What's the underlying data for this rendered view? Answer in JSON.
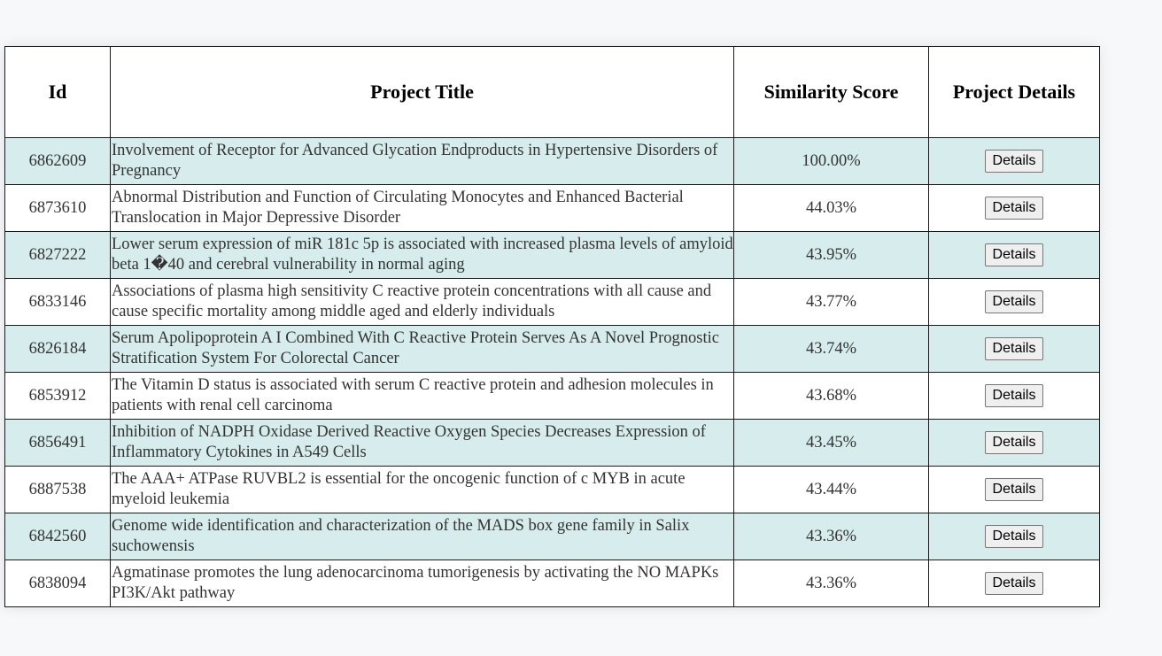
{
  "table": {
    "headers": {
      "id": "Id",
      "title": "Project Title",
      "score": "Similarity Score",
      "details": "Project Details"
    },
    "details_label": "Details",
    "rows": [
      {
        "id": "6862609",
        "title": "Involvement of Receptor for Advanced Glycation Endproducts in Hypertensive Disorders of Pregnancy",
        "score": "100.00%"
      },
      {
        "id": "6873610",
        "title": "Abnormal Distribution and Function of Circulating Monocytes and Enhanced Bacterial Translocation in Major Depressive Disorder",
        "score": "44.03%"
      },
      {
        "id": "6827222",
        "title": "Lower serum expression of miR 181c 5p is associated with increased plasma levels of amyloid beta 1�40 and cerebral vulnerability in normal aging",
        "score": "43.95%"
      },
      {
        "id": "6833146",
        "title": "Associations of plasma high sensitivity C reactive protein concentrations with all cause and cause specific mortality among middle aged and elderly individuals",
        "score": "43.77%"
      },
      {
        "id": "6826184",
        "title": "Serum Apolipoprotein A I Combined With C Reactive Protein Serves As A Novel Prognostic Stratification System For Colorectal Cancer",
        "score": "43.74%"
      },
      {
        "id": "6853912",
        "title": "The Vitamin D status is associated with serum C reactive protein and adhesion molecules in patients with renal cell carcinoma",
        "score": "43.68%"
      },
      {
        "id": "6856491",
        "title": "Inhibition of NADPH Oxidase Derived Reactive Oxygen Species Decreases Expression of Inflammatory Cytokines in A549 Cells",
        "score": "43.45%"
      },
      {
        "id": "6887538",
        "title": "The AAA+ ATPase RUVBL2 is essential for the oncogenic function of c MYB in acute myeloid leukemia",
        "score": "43.44%"
      },
      {
        "id": "6842560",
        "title": "Genome wide identification and characterization of the MADS box gene family in Salix suchowensis",
        "score": "43.36%"
      },
      {
        "id": "6838094",
        "title": "Agmatinase promotes the lung adenocarcinoma tumorigenesis by activating the NO MAPKs PI3K/Akt pathway",
        "score": "43.36%"
      }
    ]
  },
  "colors": {
    "row_alt_background": "#d7ecec",
    "border": "#1a1a1a"
  }
}
